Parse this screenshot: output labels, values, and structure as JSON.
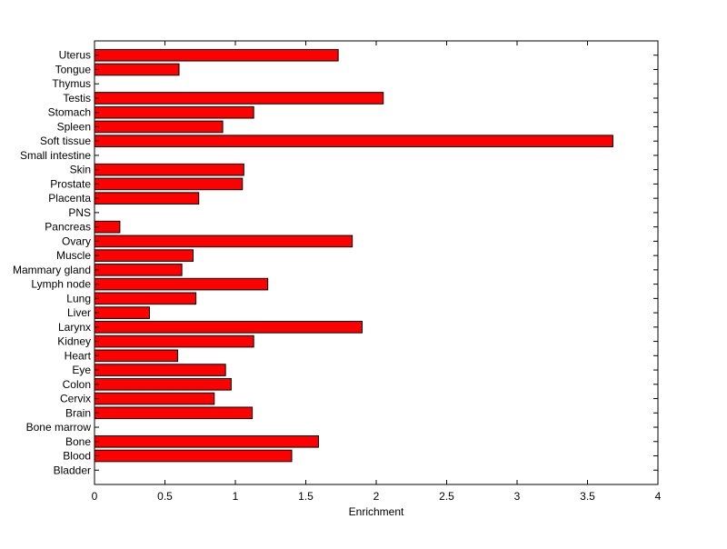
{
  "chart_data": {
    "type": "bar",
    "orientation": "horizontal",
    "title": "",
    "xlabel": "Enrichment",
    "ylabel": "",
    "xlim": [
      0,
      4
    ],
    "x_ticks": [
      0,
      0.5,
      1,
      1.5,
      2,
      2.5,
      3,
      3.5,
      4
    ],
    "x_tick_labels": [
      "0",
      "0.5",
      "1",
      "1.5",
      "2",
      "2.5",
      "3",
      "3.5",
      "4"
    ],
    "grid": false,
    "bar_color": "#ff0000",
    "bar_edge_color": "#000000",
    "categories": [
      "Bladder",
      "Blood",
      "Bone",
      "Bone marrow",
      "Brain",
      "Cervix",
      "Colon",
      "Eye",
      "Heart",
      "Kidney",
      "Larynx",
      "Liver",
      "Lung",
      "Lymph node",
      "Mammary gland",
      "Muscle",
      "Ovary",
      "Pancreas",
      "PNS",
      "Placenta",
      "Prostate",
      "Skin",
      "Small intestine",
      "Soft tissue",
      "Spleen",
      "Stomach",
      "Testis",
      "Thymus",
      "Tongue",
      "Uterus"
    ],
    "values": [
      0,
      1.4,
      1.59,
      0,
      1.12,
      0.85,
      0.97,
      0.93,
      0.59,
      1.13,
      1.9,
      0.39,
      0.72,
      1.23,
      0.62,
      0.7,
      1.83,
      0.18,
      0,
      0.74,
      1.05,
      1.06,
      0,
      3.68,
      0.91,
      1.13,
      2.05,
      0,
      0.6,
      1.73
    ]
  }
}
